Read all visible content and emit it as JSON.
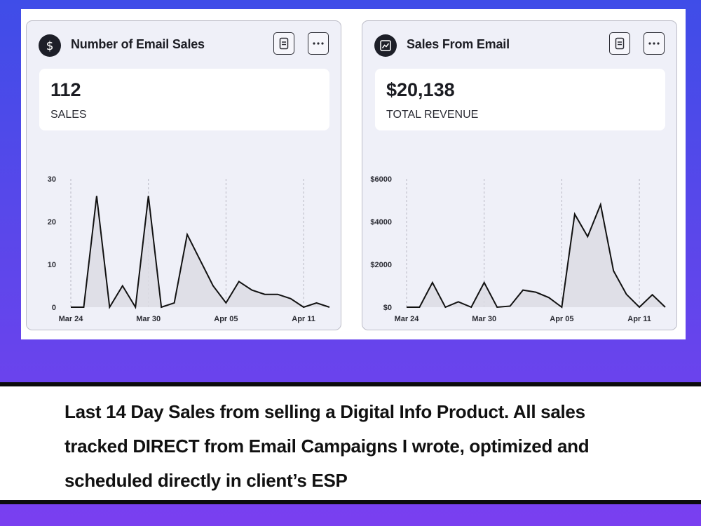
{
  "cards": [
    {
      "title": "Number of Email Sales",
      "icon": "dollar-icon",
      "stat_value": "112",
      "stat_label": "SALES"
    },
    {
      "title": "Sales From Email",
      "icon": "trend-chart-icon",
      "stat_value": "$20,138",
      "stat_label": "TOTAL REVENUE"
    }
  ],
  "buttons": {
    "report_icon": "report-icon",
    "more_icon": "more-options-icon"
  },
  "chart_data": [
    {
      "type": "area",
      "x_ticks": [
        "Mar 24",
        "Mar 30",
        "Apr 05",
        "Apr 11"
      ],
      "y_ticks": [
        "0",
        "10",
        "20",
        "30"
      ],
      "ylim": [
        0,
        30
      ],
      "x_start": "Mar 24",
      "values": [
        0,
        0,
        26,
        0,
        5,
        0,
        26,
        0,
        1,
        17,
        11,
        5,
        1,
        6,
        4,
        3,
        3,
        2,
        0,
        1,
        0
      ],
      "fill_color": "#dcdce4",
      "line_color": "#111111",
      "grid": "vertical-dashed"
    },
    {
      "type": "area",
      "x_ticks": [
        "Mar 24",
        "Mar 30",
        "Apr 05",
        "Apr 11"
      ],
      "y_ticks": [
        "$0",
        "$2000",
        "$4000",
        "$6000"
      ],
      "ylim": [
        0,
        6000
      ],
      "x_start": "Mar 24",
      "values": [
        0,
        0,
        1150,
        0,
        250,
        0,
        1150,
        0,
        50,
        800,
        700,
        450,
        0,
        4350,
        3300,
        4800,
        1700,
        600,
        0,
        580,
        0
      ],
      "fill_color": "#dcdce4",
      "line_color": "#111111",
      "grid": "vertical-dashed"
    }
  ],
  "caption": "Last 14 Day Sales from selling a Digital Info Product. All sales tracked DIRECT from Email Campaigns I wrote, optimized and scheduled directly in client’s ESP"
}
